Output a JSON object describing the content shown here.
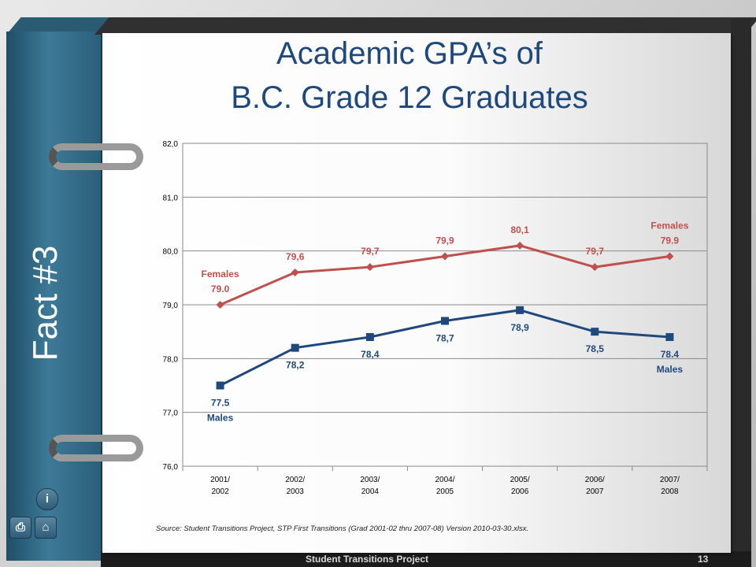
{
  "side_label": "Fact #3",
  "title_line1": "Academic GPA’s of",
  "title_line2": "B.C. Grade 12 Graduates",
  "source": "Source:  Student Transitions Project, STP First Transitions (Grad 2001-02 thru 2007-08) Version 2010-03-30.xlsx.",
  "footer": {
    "title": "Student Transitions Project",
    "page_number": "13"
  },
  "icons": [
    "info-icon",
    "printer-icon",
    "home-icon"
  ],
  "chart_data": {
    "type": "line",
    "categories": [
      [
        "2001/",
        "2002"
      ],
      [
        "2002/",
        "2003"
      ],
      [
        "2003/",
        "2004"
      ],
      [
        "2004/",
        "2005"
      ],
      [
        "2005/",
        "2006"
      ],
      [
        "2006/",
        "2007"
      ],
      [
        "2007/",
        "2008"
      ]
    ],
    "ylim": [
      76.0,
      82.0
    ],
    "yticks": [
      "76,0",
      "77,0",
      "78,0",
      "79,0",
      "80,0",
      "81,0",
      "82,0"
    ],
    "grid": true,
    "series": [
      {
        "values": [
          79.0,
          79.6,
          79.7,
          79.9,
          80.1,
          79.7,
          79.9
        ],
        "labels": [
          [
            "Females",
            "79.0"
          ],
          [
            "79,6"
          ],
          [
            "79,7"
          ],
          [
            "79,9"
          ],
          [
            "80,1"
          ],
          [
            "79,7"
          ],
          [
            "Females",
            "79.9"
          ]
        ],
        "color": "#c0504d",
        "marker": "diamond"
      },
      {
        "values": [
          77.5,
          78.2,
          78.4,
          78.7,
          78.9,
          78.5,
          78.4
        ],
        "labels": [
          [
            "77.5",
            "Males"
          ],
          [
            "78,2"
          ],
          [
            "78,4"
          ],
          [
            "78,7"
          ],
          [
            "78,9"
          ],
          [
            "78,5"
          ],
          [
            "78.4",
            "Males"
          ]
        ],
        "color": "#1f497d",
        "marker": "square"
      }
    ]
  }
}
